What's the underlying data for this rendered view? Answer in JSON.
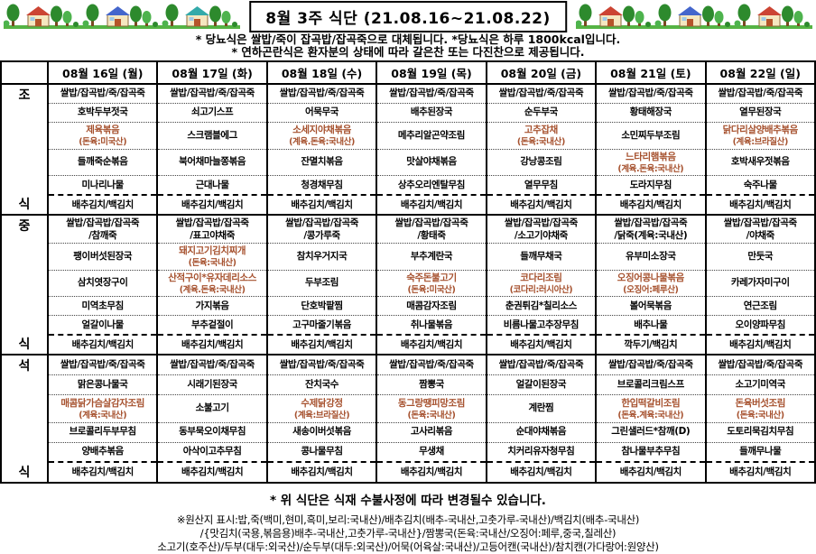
{
  "title": "8월 3주 식단 (21.08.16~21.08.22)",
  "notes": [
    "* 당뇨식은 쌀밥/죽이 잡곡밥/잡곡죽으로 대체됩니다. *당뇨식은 하루 1800kcal입니다.",
    "* 연하곤란식은 환자분의 상태에 따라 갈은찬 또는 다진찬으로 제공됩니다."
  ],
  "colors": {
    "origin_text": "#a6512e",
    "ground_green": "#55b344",
    "tree_green": "#2d8a2d",
    "tree_light": "#4db34d",
    "trunk_brown": "#7a4a21",
    "house_wall": "#f5e7c0",
    "door_red": "#b5542a",
    "roof_red": "#cc4433",
    "roof_blue": "#4466cc",
    "roof_teal": "#33aaaa"
  },
  "days": [
    "08월 16일 (월)",
    "08월 17일 (화)",
    "08월 18일 (수)",
    "08월 19일 (목)",
    "08월 20일 (금)",
    "08월 21일 (토)",
    "08월 22일 (일)"
  ],
  "meals": [
    {
      "id": "breakfast",
      "label": [
        "조",
        "식"
      ],
      "days": [
        [
          "쌀밥/잡곡밥/죽/잡곡죽",
          "호박두부젓국",
          {
            "t": "제육볶음",
            "sub": "(돈육:미국산)",
            "red": true
          },
          "들깨죽순볶음",
          "미나리나물",
          "배추김치/백김치"
        ],
        [
          "쌀밥/잡곡밥/죽/잡곡죽",
          "쇠고기스프",
          "스크램블에그",
          "북어채마늘쫑볶음",
          "근대나물",
          "배추김치/백김치"
        ],
        [
          "쌀밥/잡곡밥/죽/잡곡죽",
          "어묵무국",
          {
            "t": "소세지야채볶음",
            "sub": "(계육.돈육:국내산)",
            "red": true
          },
          "잔멸치볶음",
          "청경채무침",
          "배추김치/백김치"
        ],
        [
          "쌀밥/잡곡밥/죽/잡곡죽",
          "배추된장국",
          "메추리알곤약조림",
          "맛살야채볶음",
          "상추오리엔탈무침",
          "배추김치/백김치"
        ],
        [
          "쌀밥/잡곡밥/죽/잡곡죽",
          "순두부국",
          {
            "t": "고추잡채",
            "sub": "(돈육:국내산)",
            "red": true
          },
          "강낭콩조림",
          "열무무침",
          "배추김치/백김치"
        ],
        [
          "쌀밥/잡곡밥/죽/잡곡죽",
          "황태해장국",
          "소민찌두부조림",
          {
            "t": "느타리햄볶음",
            "sub": "(계육.돈육:국내산)",
            "red": true
          },
          "도라지무침",
          "배추김치/백김치"
        ],
        [
          "쌀밥/잡곡밥/죽/잡곡죽",
          "열무된장국",
          {
            "t": "닭다리살양배추볶음",
            "sub": "(계육:브라질산)",
            "red": true
          },
          "호박새우젓볶음",
          "숙주나물",
          "배추김치/백김치"
        ]
      ]
    },
    {
      "id": "lunch",
      "label": [
        "중",
        "식"
      ],
      "days": [
        [
          {
            "t": "쌀밥/잡곡밥/잡곡죽",
            "sub": "/참깨죽"
          },
          "팽이버섯된장국",
          "삼치엿장구이",
          "미역초무침",
          "얼갈이나물",
          "배추김치/백김치"
        ],
        [
          {
            "t": "쌀밥/잡곡밥/잡곡죽",
            "sub": "/표고야채죽"
          },
          {
            "t": "돼지고기김치찌개",
            "sub": "(돈육:국내산)",
            "red": true
          },
          {
            "t": "산적구이*유자데리소스",
            "sub": "(계육.돈육:국내산)",
            "red": true
          },
          "가지볶음",
          "부추겉절이",
          "배추김치/백김치"
        ],
        [
          {
            "t": "쌀밥/잡곡밥/잡곡죽",
            "sub": "/콩가루죽"
          },
          "참치우거지국",
          "두부조림",
          "단호박팥찜",
          "고구마줄기볶음",
          "배추김치/백김치"
        ],
        [
          {
            "t": "쌀밥/잡곡밥/잡곡죽",
            "sub": "/황태죽"
          },
          "부추계란국",
          {
            "t": "숙주돈불고기",
            "sub": "(돈육:미국산)",
            "red": true
          },
          "매콤감자조림",
          "취나물볶음",
          "배추김치/백김치"
        ],
        [
          {
            "t": "쌀밥/잡곡밥/잡곡죽",
            "sub": "/소고기야채죽"
          },
          "들깨무채국",
          {
            "t": "코다리조림",
            "sub": "(코다리:러시아산)",
            "red": true
          },
          "춘권튀김*칠리소스",
          "비름나물고추장무침",
          "배추김치/백김치"
        ],
        [
          {
            "t": "쌀밥/잡곡밥/잡곡죽",
            "sub": "/닭죽(계육:국내산)"
          },
          "유부미소장국",
          {
            "t": "오징어콩나물볶음",
            "sub": "(오징어:페루산)",
            "red": true
          },
          "볼어묵볶음",
          "배추나물",
          "깍두기/백김치"
        ],
        [
          {
            "t": "쌀밥/잡곡밥/잡곡죽",
            "sub": "/야채죽"
          },
          "만둣국",
          "카레가자미구이",
          "연근조림",
          "오이양파무침",
          "배추김치/백김치"
        ]
      ]
    },
    {
      "id": "dinner",
      "label": [
        "석",
        "식"
      ],
      "days": [
        [
          "쌀밥/잡곡밥/죽/잡곡죽",
          "맑은콩나물국",
          {
            "t": "매콤닭가슴살감자조림",
            "sub": "(계육:국내산)",
            "red": true
          },
          "브로콜리두부무침",
          "양배추볶음",
          "배추김치/백김치"
        ],
        [
          "쌀밥/잡곡밥/죽/잡곡죽",
          "시래기된장국",
          "소불고기",
          "동부묵오이채무침",
          "아삭이고추무침",
          "배추김치/백김치"
        ],
        [
          "쌀밥/잡곡밥/죽/잡곡죽",
          "잔치국수",
          {
            "t": "수제닭강정",
            "sub": "(계육:브라질산)",
            "red": true
          },
          "새송이버섯볶음",
          "콩나물무침",
          "배추김치/백김치"
        ],
        [
          "쌀밥/잡곡밥/죽/잡곡죽",
          "짬뽕국",
          {
            "t": "동그랑땡피망조림",
            "sub": "(돈육:국내산)",
            "red": true
          },
          "고사리볶음",
          "무생채",
          "배추김치/백김치"
        ],
        [
          "쌀밥/잡곡밥/죽/잡곡죽",
          "얼갈이된장국",
          "계란찜",
          "순대야채볶음",
          "치커리유자청무침",
          "배추김치/백김치"
        ],
        [
          "쌀밥/잡곡밥/죽/잡곡죽",
          "브로콜리크림스프",
          {
            "t": "한입떡갈비조림",
            "sub": "(돈육.계육:국내산)",
            "red": true
          },
          "그린샐러드*참깨(D)",
          "참나물부추무침",
          "배추김치/백김치"
        ],
        [
          "쌀밥/잡곡밥/죽/잡곡죽",
          "소고기미역국",
          {
            "t": "돈육버섯조림",
            "sub": "(돈육:국내산)",
            "red": true
          },
          "도토리묵김치무침",
          "들깨무나물",
          "배추김치/백김치"
        ]
      ]
    }
  ],
  "footer": {
    "notice": "* 위 식단은 식재 수불사정에 따라 변경될수 있습니다.",
    "origin_lines": [
      "※원산지 표시:밥,죽(백미,현미,흑미,보리:국내산)/배추김치(배추-국내산,고춧가루-국내산)/백김치(배추-국내산)",
      "/{맛김치(국용,볶음용)배추-국내산,고춧가루-국내산}/짬뽕국(돈육:국내산/오징어:페루,중국,칠레산)",
      "소고기(호주산)/두부(대두:외국산)/순두부(대두:외국산)/어묵(어육살:국내산)/고등어캔(국내산)/참치캔(가다랑어:원양산)"
    ]
  }
}
